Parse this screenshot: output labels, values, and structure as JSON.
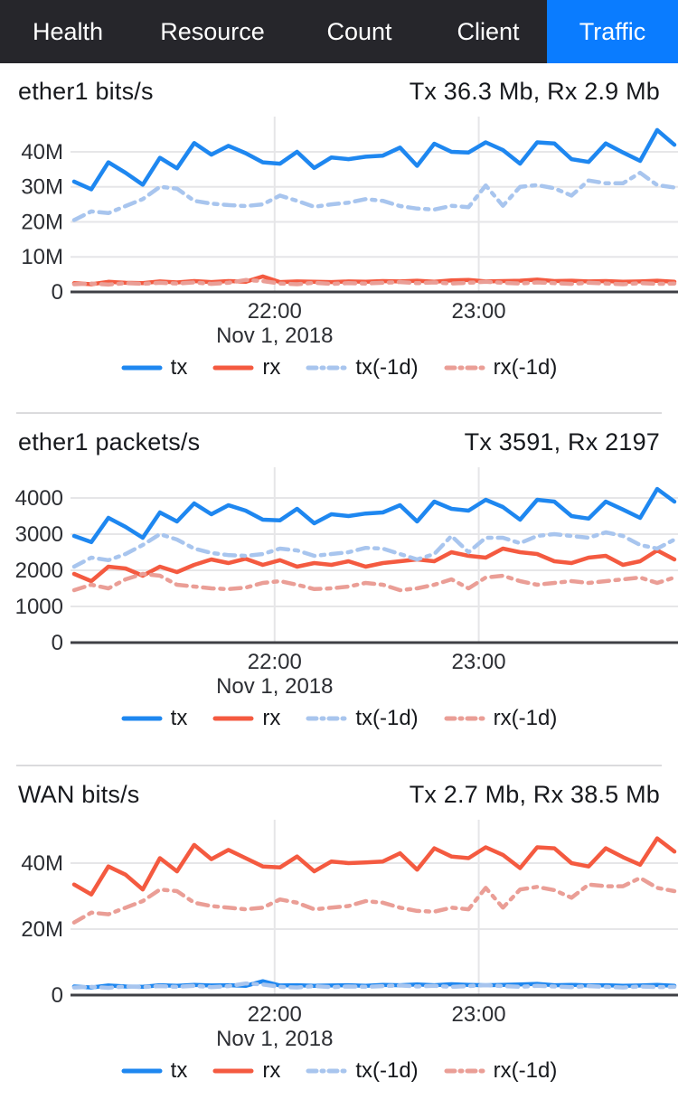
{
  "tabs": {
    "active": "Traffic",
    "items": [
      {
        "label": "Health"
      },
      {
        "label": "Resource"
      },
      {
        "label": "Count"
      },
      {
        "label": "Client"
      },
      {
        "label": "Traffic"
      }
    ]
  },
  "colors": {
    "tab_bar_bg": "#26262b",
    "tab_active_bg": "#0a7cff",
    "tx": "#1e87f0",
    "rx": "#f45a40",
    "tx_1d": "#a8c5ee",
    "rx_1d": "#ea9e96",
    "grid": "#e6e6e8",
    "axis": "#3f4045",
    "tick_text": "#2c2e33",
    "header_text": "#17191d"
  },
  "chart_data": [
    {
      "type": "line",
      "title": "ether1 bits/s",
      "summary": "Tx 36.3 Mb, Rx 2.9 Mb",
      "date_label": "Nov 1, 2018",
      "x_ticks": [
        {
          "label": "22:00",
          "f": 0.336
        },
        {
          "label": "23:00",
          "f": 0.672
        }
      ],
      "y_unit": "Mb",
      "y_top_value": 51.6,
      "y_ticks": [
        {
          "v": 0,
          "label": "0"
        },
        {
          "v": 10,
          "label": "10M"
        },
        {
          "v": 20,
          "label": "20M"
        },
        {
          "v": 30,
          "label": "30M"
        },
        {
          "v": 40,
          "label": "40M"
        }
      ],
      "legend_position": "bottom",
      "grid": true,
      "series": [
        {
          "name": "tx",
          "color": "#1e87f0",
          "dash": false,
          "values": [
            31.5,
            29.3,
            37,
            34,
            30.6,
            38.3,
            35.3,
            42.5,
            39.2,
            41.7,
            39.6,
            37,
            36.6,
            40,
            35.4,
            38.4,
            37.9,
            38.6,
            38.9,
            41.2,
            36,
            42.3,
            40,
            39.8,
            42.7,
            40.5,
            36.6,
            42.7,
            42.4,
            37.9,
            37.1,
            42.4,
            39.8,
            37.4,
            46.2,
            42
          ]
        },
        {
          "name": "rx",
          "color": "#f45a40",
          "dash": false,
          "values": [
            2.5,
            2.2,
            2.9,
            2.6,
            2.5,
            3,
            2.7,
            3.1,
            2.8,
            3.1,
            2.9,
            4.4,
            2.8,
            3,
            2.9,
            2.8,
            3,
            2.9,
            3.1,
            3,
            3.2,
            2.9,
            3.3,
            3.4,
            3,
            3.1,
            3.2,
            3.5,
            3.1,
            3.2,
            3,
            3.1,
            2.9,
            3,
            3.2,
            2.9
          ]
        },
        {
          "name": "tx(-1d)",
          "color": "#a8c5ee",
          "dash": true,
          "values": [
            20.5,
            23,
            22.5,
            24.5,
            26.5,
            30,
            29.5,
            26,
            25.2,
            24.8,
            24.5,
            25,
            27.5,
            26,
            24.3,
            25,
            25.5,
            26.5,
            26,
            24.5,
            23.8,
            23.5,
            24.6,
            24.2,
            30.4,
            24.6,
            30,
            30.5,
            29.6,
            27.5,
            31.8,
            31,
            31,
            34,
            30.5,
            29.8
          ]
        },
        {
          "name": "rx(-1d)",
          "color": "#ea9e96",
          "dash": true,
          "values": [
            2.2,
            2.4,
            2.1,
            2.5,
            2.3,
            2.6,
            2.4,
            2.7,
            2.3,
            2.6,
            3.4,
            3.1,
            2.4,
            2.2,
            2.6,
            2.3,
            2.5,
            2.4,
            2.6,
            2.8,
            2.5,
            2.7,
            2.4,
            2.6,
            2.9,
            2.6,
            2.4,
            2.7,
            2.5,
            2.3,
            2.6,
            2.4,
            2.2,
            2.5,
            2.3,
            2.4
          ]
        }
      ]
    },
    {
      "type": "line",
      "title": "ether1 packets/s",
      "summary": "Tx 3591, Rx 2197",
      "date_label": "Nov 1, 2018",
      "x_ticks": [
        {
          "label": "22:00",
          "f": 0.336
        },
        {
          "label": "23:00",
          "f": 0.672
        }
      ],
      "y_unit": "packets",
      "y_top_value": 5000,
      "y_ticks": [
        {
          "v": 0,
          "label": "0"
        },
        {
          "v": 1000,
          "label": "1000"
        },
        {
          "v": 2000,
          "label": "2000"
        },
        {
          "v": 3000,
          "label": "3000"
        },
        {
          "v": 4000,
          "label": "4000"
        }
      ],
      "legend_position": "bottom",
      "grid": true,
      "series": [
        {
          "name": "tx",
          "color": "#1e87f0",
          "dash": false,
          "values": [
            2950,
            2780,
            3450,
            3200,
            2900,
            3600,
            3350,
            3850,
            3550,
            3800,
            3650,
            3400,
            3380,
            3700,
            3300,
            3550,
            3500,
            3570,
            3600,
            3800,
            3350,
            3900,
            3700,
            3650,
            3950,
            3750,
            3400,
            3950,
            3900,
            3500,
            3430,
            3900,
            3680,
            3450,
            4250,
            3900
          ]
        },
        {
          "name": "rx",
          "color": "#f45a40",
          "dash": false,
          "values": [
            1900,
            1700,
            2100,
            2050,
            1850,
            2100,
            1950,
            2150,
            2300,
            2200,
            2320,
            2150,
            2280,
            2100,
            2200,
            2150,
            2250,
            2100,
            2200,
            2250,
            2300,
            2250,
            2500,
            2400,
            2350,
            2600,
            2500,
            2450,
            2250,
            2200,
            2350,
            2400,
            2150,
            2250,
            2550,
            2300
          ]
        },
        {
          "name": "tx(-1d)",
          "color": "#a8c5ee",
          "dash": true,
          "values": [
            2100,
            2350,
            2280,
            2450,
            2700,
            3000,
            2850,
            2600,
            2480,
            2420,
            2400,
            2450,
            2600,
            2550,
            2400,
            2450,
            2500,
            2620,
            2600,
            2450,
            2300,
            2450,
            2950,
            2500,
            2900,
            2900,
            2750,
            2950,
            3000,
            2950,
            2900,
            3050,
            2950,
            2700,
            2600,
            2850
          ]
        },
        {
          "name": "rx(-1d)",
          "color": "#ea9e96",
          "dash": true,
          "values": [
            1450,
            1600,
            1500,
            1750,
            1900,
            1850,
            1600,
            1550,
            1500,
            1480,
            1520,
            1650,
            1700,
            1600,
            1480,
            1500,
            1550,
            1650,
            1600,
            1450,
            1500,
            1600,
            1750,
            1500,
            1800,
            1850,
            1700,
            1600,
            1650,
            1700,
            1650,
            1700,
            1750,
            1800,
            1650,
            1800
          ]
        }
      ]
    },
    {
      "type": "line",
      "title": "WAN bits/s",
      "summary": "Tx 2.7 Mb, Rx 38.5 Mb",
      "date_label": "Nov 1, 2018",
      "x_ticks": [
        {
          "label": "22:00",
          "f": 0.336
        },
        {
          "label": "23:00",
          "f": 0.672
        }
      ],
      "y_unit": "Mb",
      "y_top_value": 54.8,
      "y_ticks": [
        {
          "v": 0,
          "label": "0"
        },
        {
          "v": 20,
          "label": "20M"
        },
        {
          "v": 40,
          "label": "40M"
        }
      ],
      "legend_position": "bottom",
      "grid": true,
      "series": [
        {
          "name": "tx",
          "color": "#1e87f0",
          "dash": false,
          "values": [
            2.6,
            2.3,
            2.9,
            2.6,
            2.5,
            3,
            2.8,
            3.1,
            2.9,
            3,
            2.8,
            4.2,
            2.9,
            3,
            2.8,
            2.9,
            3,
            2.8,
            3.1,
            3,
            3.2,
            3,
            3.3,
            3.1,
            3,
            3.1,
            3.2,
            3.4,
            3,
            3.1,
            2.9,
            3,
            2.8,
            2.9,
            3.1,
            2.8
          ]
        },
        {
          "name": "rx",
          "color": "#f45a40",
          "dash": false,
          "values": [
            33.5,
            30.5,
            39,
            36.5,
            32,
            41.5,
            37.5,
            45.5,
            41.2,
            44,
            41.5,
            39,
            38.7,
            42,
            37.5,
            40.5,
            40,
            40.2,
            40.5,
            43,
            38,
            44.5,
            42,
            41.5,
            44.8,
            42.5,
            38.5,
            44.8,
            44.5,
            40,
            39,
            44.5,
            41.8,
            39.5,
            47.5,
            43.5
          ]
        },
        {
          "name": "tx(-1d)",
          "color": "#a8c5ee",
          "dash": true,
          "values": [
            2.3,
            2.5,
            2.2,
            2.6,
            2.4,
            2.7,
            2.5,
            2.8,
            2.4,
            2.7,
            3.5,
            3.2,
            2.5,
            2.3,
            2.7,
            2.4,
            2.6,
            2.5,
            2.7,
            2.9,
            2.6,
            2.8,
            2.5,
            2.7,
            3,
            2.7,
            2.5,
            2.8,
            2.6,
            2.4,
            2.7,
            2.5,
            2.3,
            2.6,
            2.4,
            2.5
          ]
        },
        {
          "name": "rx(-1d)",
          "color": "#ea9e96",
          "dash": true,
          "values": [
            22,
            25,
            24.5,
            26.5,
            28.5,
            32,
            31.5,
            28,
            27,
            26.5,
            26,
            26.5,
            29,
            28,
            26,
            26.5,
            27,
            28.5,
            28,
            26.5,
            25.5,
            25.3,
            26.5,
            26,
            32.5,
            26.5,
            32,
            32.8,
            31.8,
            29.5,
            33.5,
            33,
            33,
            35.5,
            32.5,
            31.5
          ]
        }
      ]
    }
  ]
}
